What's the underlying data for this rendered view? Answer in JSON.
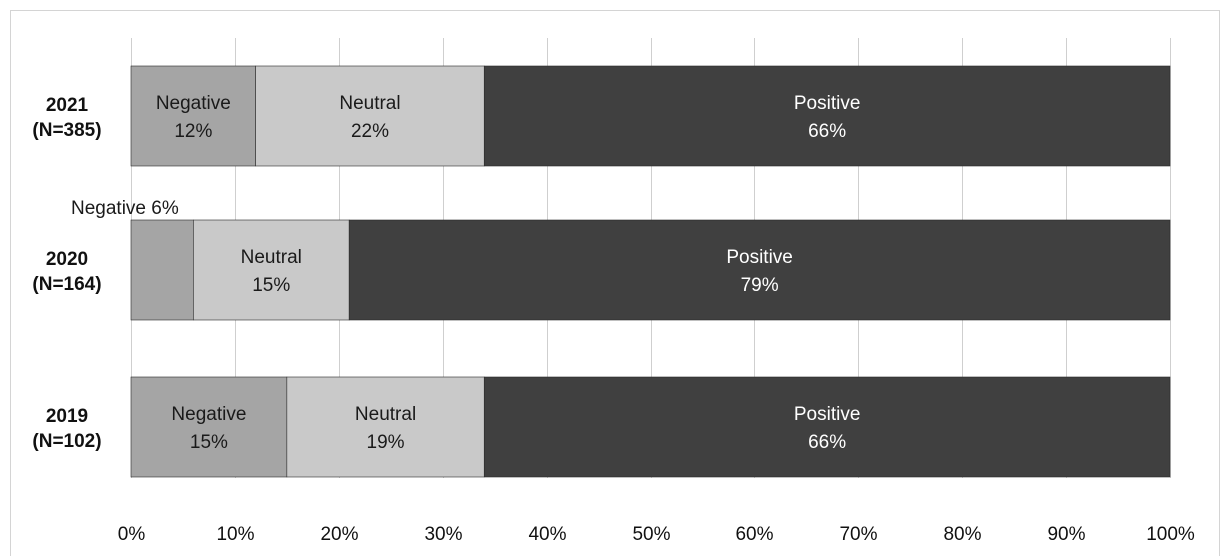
{
  "chart_data": {
    "type": "bar",
    "orientation": "horizontal",
    "stacked": true,
    "title": "",
    "xlabel": "",
    "ylabel": "",
    "xlim": [
      0,
      100
    ],
    "x_ticks": [
      "0%",
      "10%",
      "20%",
      "30%",
      "40%",
      "50%",
      "60%",
      "70%",
      "80%",
      "90%",
      "100%"
    ],
    "grid": true,
    "legend": "none",
    "categories": [
      {
        "label_line1": "2021",
        "label_line2": "(N=385)"
      },
      {
        "label_line1": "2020",
        "label_line2": "(N=164)"
      },
      {
        "label_line1": "2019",
        "label_line2": "(N=102)"
      }
    ],
    "series": [
      {
        "name": "Negative",
        "color": "#a5a5a5",
        "text_color": "#1a1a1a",
        "values": [
          12,
          6,
          15
        ],
        "labels": [
          [
            "Negative",
            "12%"
          ],
          [
            "Negative 6%"
          ],
          [
            "Negative",
            "15%"
          ]
        ]
      },
      {
        "name": "Neutral",
        "color": "#c9c9c9",
        "text_color": "#1a1a1a",
        "values": [
          22,
          15,
          19
        ],
        "labels": [
          [
            "Neutral",
            "22%"
          ],
          [
            "Neutral",
            "15%"
          ],
          [
            "Neutral",
            "19%"
          ]
        ]
      },
      {
        "name": "Positive",
        "color": "#404040",
        "text_color": "#ffffff",
        "values": [
          66,
          79,
          66
        ],
        "labels": [
          [
            "Positive",
            "66%"
          ],
          [
            "Positive",
            "79%"
          ],
          [
            "Positive",
            "66%"
          ]
        ]
      }
    ]
  }
}
